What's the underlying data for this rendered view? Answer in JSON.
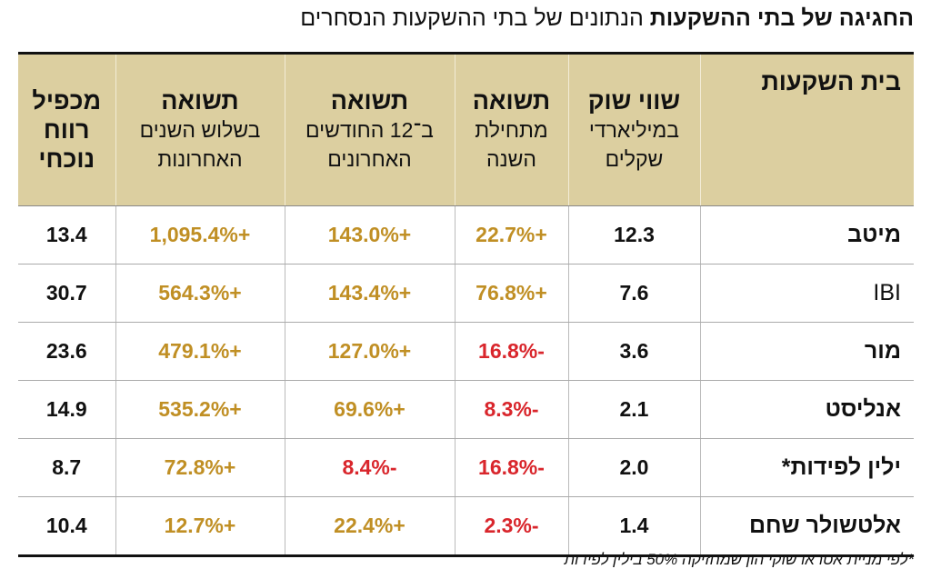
{
  "header": {
    "title": "החגיגה של בתי ההשקעות",
    "subtitle": "הנתונים של בתי ההשקעות הנסחרים"
  },
  "table": {
    "columns": [
      {
        "title": "בית השקעות",
        "lines": []
      },
      {
        "title": "שווי שוק",
        "lines": [
          "במיליארדי",
          "שקלים"
        ]
      },
      {
        "title": "תשואה",
        "lines": [
          "מתחילת",
          "השנה"
        ]
      },
      {
        "title": "תשואה",
        "lines": [
          "ב־12 החודשים",
          "האחרונים"
        ]
      },
      {
        "title": "תשואה",
        "lines": [
          "בשלוש השנים",
          "האחרונות"
        ]
      },
      {
        "title": "מכפיל",
        "lines": [
          "רווח",
          "נוכחי"
        ]
      }
    ],
    "rows": [
      [
        "מיטב",
        "12.3",
        "+22.7%",
        "+143.0%",
        "+1,095.4%",
        "13.4"
      ],
      [
        "IBI",
        "7.6",
        "+76.8%",
        "+143.4%",
        "+564.3%",
        "30.7"
      ],
      [
        "מור",
        "3.6",
        "-16.8%",
        "+127.0%",
        "+479.1%",
        "23.6"
      ],
      [
        "אנליסט",
        "2.1",
        "-8.3%",
        "+69.6%",
        "+535.2%",
        "14.9"
      ],
      [
        "ילין לפידות*",
        "2.0",
        "-16.8%",
        "-8.4%",
        "+72.8%",
        "8.7"
      ],
      [
        "אלטשולר שחם",
        "1.4",
        "-2.3%",
        "+22.4%",
        "+12.7%",
        "10.4"
      ]
    ]
  },
  "footnote": "*לפי מניית אטראו שוקי הון שמחזיקה 50% בילין לפידות"
}
